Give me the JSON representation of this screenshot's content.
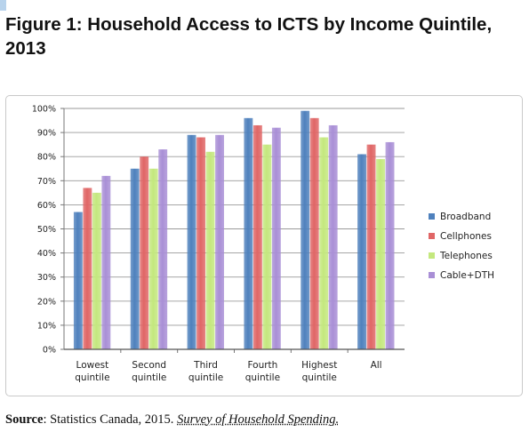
{
  "figure": {
    "title": "Figure 1: Household Access to ICTS by Income Quintile, 2013"
  },
  "source": {
    "label": "Source",
    "text": ": Statistics Canada, 2015. ",
    "publication": "Survey of Household Spending."
  },
  "chart_data": {
    "type": "bar",
    "title": "",
    "xlabel": "",
    "ylabel": "",
    "categories": [
      "Lowest quintile",
      "Second quintile",
      "Third quintile",
      "Fourth quintile",
      "Highest quintile",
      "All"
    ],
    "category_lines": [
      [
        "Lowest",
        "quintile"
      ],
      [
        "Second",
        "quintile"
      ],
      [
        "Third",
        "quintile"
      ],
      [
        "Fourth",
        "quintile"
      ],
      [
        "Highest",
        "quintile"
      ],
      [
        "All",
        ""
      ]
    ],
    "series": [
      {
        "name": "Broadband",
        "color": "#4f81bd",
        "values": [
          57,
          75,
          89,
          96,
          99,
          81
        ]
      },
      {
        "name": "Cellphones",
        "color": "#e06666",
        "values": [
          67,
          80,
          88,
          93,
          96,
          85
        ]
      },
      {
        "name": "Telephones",
        "color": "#c4e87e",
        "values": [
          65,
          75,
          82,
          85,
          88,
          79
        ]
      },
      {
        "name": "Cable+DTH",
        "color": "#a98fd6",
        "values": [
          72,
          83,
          89,
          92,
          93,
          86
        ]
      }
    ],
    "yticks": [
      "0%",
      "10%",
      "20%",
      "30%",
      "40%",
      "50%",
      "60%",
      "70%",
      "80%",
      "90%",
      "100%"
    ],
    "ylim": [
      0,
      100
    ],
    "grid": true,
    "legend_position": "right"
  }
}
